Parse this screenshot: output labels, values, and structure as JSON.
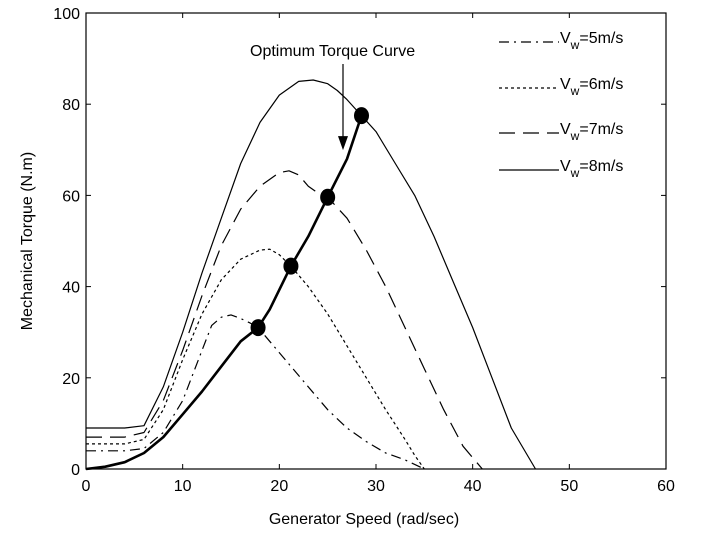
{
  "chart_data": {
    "type": "line",
    "title": "",
    "xlabel": "Generator Speed (rad/sec)",
    "ylabel": "Mechanical Torque (N.m)",
    "xlim": [
      0,
      60
    ],
    "ylim": [
      0,
      100
    ],
    "xticks": [
      "0",
      "10",
      "20",
      "30",
      "40",
      "50",
      "60"
    ],
    "yticks": [
      "0",
      "20",
      "40",
      "60",
      "80",
      "100"
    ],
    "grid": false,
    "legend_position": "top-right",
    "annotation": "Optimum Torque Curve",
    "series": [
      {
        "legend_main": "V",
        "legend_sub": "w",
        "legend_rest": "=5m/s",
        "dash": "dash-dot",
        "x": [
          0,
          4,
          6,
          8,
          10,
          12,
          13,
          14,
          15,
          16,
          17,
          17.8,
          19,
          21,
          23,
          25,
          27,
          29,
          31,
          33,
          34,
          35
        ],
        "y": [
          4,
          4,
          4.5,
          8,
          15,
          26,
          31.5,
          33.3,
          33.8,
          33,
          32,
          31,
          28,
          23,
          18,
          13,
          9,
          6,
          3.5,
          2,
          1,
          0
        ]
      },
      {
        "legend_main": "V",
        "legend_sub": "w",
        "legend_rest": "=6m/s",
        "dash": "dotted",
        "x": [
          0,
          4,
          6,
          8,
          10,
          12,
          14,
          16,
          18,
          19,
          20,
          21.2,
          23,
          25,
          27,
          29,
          31,
          33,
          34,
          35
        ],
        "y": [
          5.5,
          5.5,
          6.5,
          13,
          24,
          34,
          41.5,
          46,
          48,
          48.2,
          47,
          44.5,
          40,
          34,
          27,
          20,
          13,
          6.5,
          3,
          0
        ]
      },
      {
        "legend_main": "V",
        "legend_sub": "w",
        "legend_rest": "=7m/s",
        "dash": "long-dash",
        "x": [
          0,
          4,
          6,
          8,
          10,
          12,
          14,
          16,
          18,
          20,
          21,
          22,
          23,
          24,
          25,
          27,
          29,
          31,
          33,
          35,
          37,
          39,
          41
        ],
        "y": [
          7,
          7,
          8,
          15,
          26,
          38,
          49,
          57,
          62,
          65,
          65.4,
          64.5,
          62,
          60.5,
          59.6,
          55,
          48,
          40,
          31,
          22,
          13,
          5,
          0
        ]
      },
      {
        "legend_main": "V",
        "legend_sub": "w",
        "legend_rest": "=8m/s",
        "dash": "solid",
        "x": [
          0,
          4,
          6,
          8,
          10,
          12,
          14,
          16,
          18,
          20,
          22,
          23.5,
          25,
          26,
          27,
          28.5,
          30,
          32,
          34,
          36,
          38,
          40,
          42,
          44,
          46.5
        ],
        "y": [
          9,
          9,
          9.5,
          18,
          30,
          43,
          55,
          67,
          76,
          82,
          85,
          85.3,
          84.5,
          83,
          81,
          77.5,
          74,
          67,
          60,
          51,
          41,
          31,
          20,
          9,
          0
        ]
      },
      {
        "legend_main": "",
        "legend_sub": "",
        "legend_rest": "",
        "dash": "bold",
        "x": [
          0,
          2,
          4,
          6,
          8,
          10,
          12,
          14,
          16,
          17.8,
          19,
          21.2,
          23,
          25,
          27,
          28.5
        ],
        "y": [
          0,
          0.5,
          1.5,
          3.5,
          7,
          12,
          17,
          22.5,
          28,
          31,
          35,
          44.5,
          51,
          59.6,
          68,
          77.5
        ]
      }
    ],
    "markers": {
      "x": [
        17.8,
        21.2,
        25,
        28.5
      ],
      "y": [
        31,
        44.5,
        59.6,
        77.5
      ]
    },
    "annotation_target": {
      "x": 26.5,
      "y": 73
    }
  }
}
